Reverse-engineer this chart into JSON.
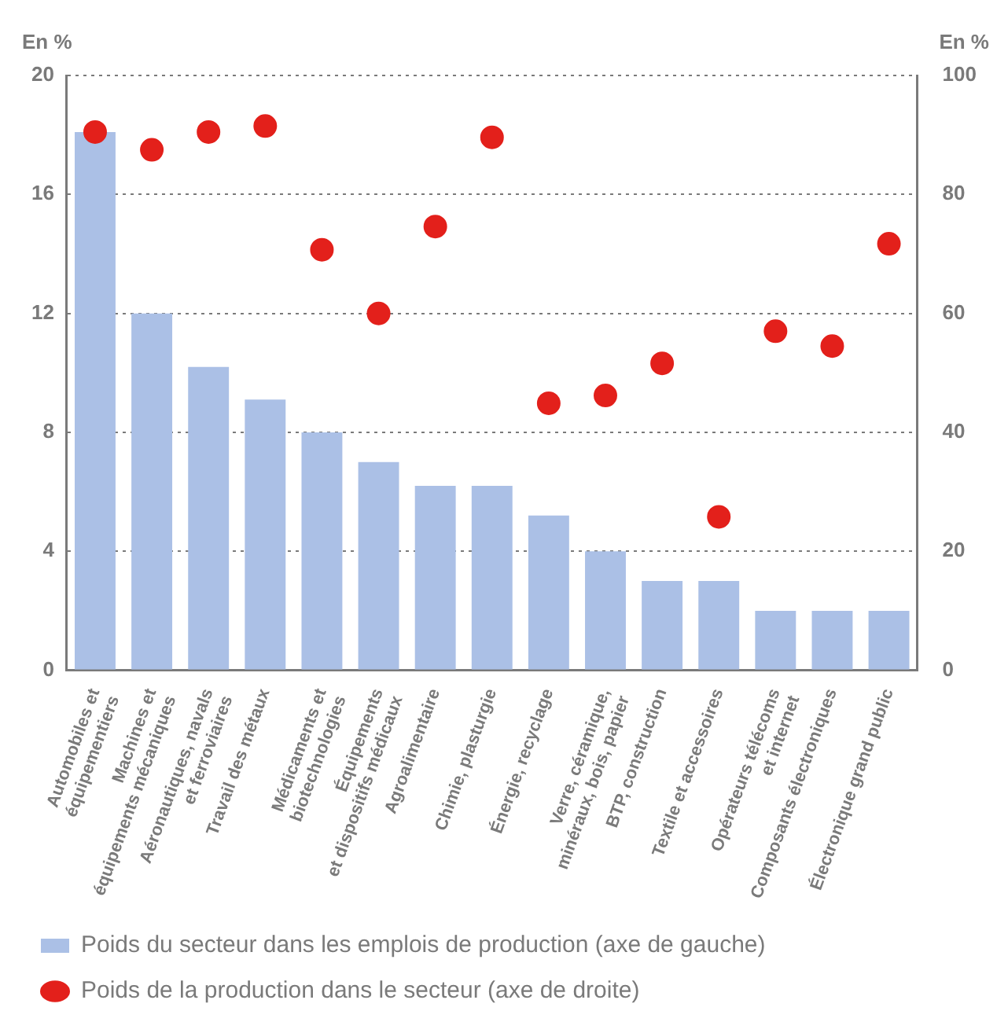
{
  "chart_data": {
    "type": "bar",
    "ylabel": "En %",
    "y2label": "En %",
    "categories": [
      "Automobiles et\néquipementiers",
      "Machines et\néquipements mécaniques",
      "Aéronautiques, navals\net ferroviaires",
      "Travail des métaux",
      "Médicaments et\nbiotechnologies",
      "Équipements\net dispositifs médicaux",
      "Agroalimentaire",
      "Chimie, plasturgie",
      "Énergie, recyclage",
      "Verre, céramique,\nminéraux, bois, papier",
      "BTP, construction",
      "Textile et accessoires",
      "Opérateurs télécoms\net internet",
      "Composants électroniques",
      "Électronique grand public"
    ],
    "series": [
      {
        "name": "Poids du secteur dans les emplois de production (axe de gauche)",
        "color": "#abc0e6",
        "values": [
          18.1,
          12,
          10.2,
          9.1,
          8,
          7,
          6.2,
          6.2,
          5.2,
          4,
          3,
          3,
          2,
          2,
          2
        ]
      },
      {
        "name": "Poids de la production dans le secteur (axe de droite)",
        "type": "scatter",
        "axis": "y2",
        "color": "#e3201b",
        "marker": "circle",
        "values": [
          90.5,
          87.5,
          90.5,
          91.5,
          70.7,
          60,
          74.6,
          89.6,
          44.9,
          46.2,
          51.6,
          25.8,
          57,
          54.5,
          71.7
        ]
      }
    ],
    "ylim": [
      0,
      20
    ],
    "yticks": [
      0,
      4,
      8,
      12,
      16,
      20
    ],
    "y2lim": [
      0,
      100
    ],
    "y2ticks": [
      0,
      20,
      40,
      60,
      80,
      100
    ],
    "grid": "y",
    "legend": "bottom"
  }
}
